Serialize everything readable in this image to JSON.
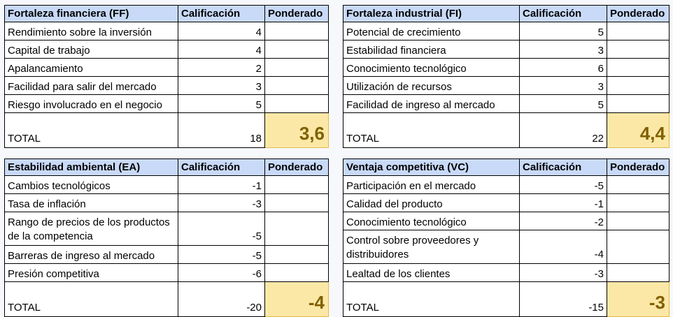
{
  "tables": {
    "ff": {
      "header": [
        "Fortaleza financiera (FF)",
        "Calificación",
        "Ponderado"
      ],
      "rows": [
        {
          "label": "Rendimiento sobre la inversión",
          "value": "4"
        },
        {
          "label": "Capital de trabajo",
          "value": "4"
        },
        {
          "label": "Apalancamiento",
          "value": "2"
        },
        {
          "label": "Facilidad para salir del mercado",
          "value": "3"
        },
        {
          "label": "Riesgo involucrado en el negocio",
          "value": "5"
        }
      ],
      "total_label": "TOTAL",
      "total_value": "18",
      "weighted": "3,6"
    },
    "fi": {
      "header": [
        "Fortaleza industrial (FI)",
        "Calificación",
        "Ponderado"
      ],
      "rows": [
        {
          "label": "Potencial de crecimiento",
          "value": "5"
        },
        {
          "label": "Estabilidad financiera",
          "value": "3"
        },
        {
          "label": "Conocimiento tecnológico",
          "value": "6"
        },
        {
          "label": "Utilización de recursos",
          "value": "3"
        },
        {
          "label": "Facilidad de ingreso al mercado",
          "value": "5"
        }
      ],
      "total_label": "TOTAL",
      "total_value": "22",
      "weighted": "4,4"
    },
    "ea": {
      "header": [
        "Estabilidad ambiental (EA)",
        "Calificación",
        "Ponderado"
      ],
      "rows": [
        {
          "label": "Cambios tecnológicos",
          "value": "-1"
        },
        {
          "label": "Tasa de inflación",
          "value": "-3"
        },
        {
          "label": "Rango de precios de los productos de la competencia",
          "value": "-5"
        },
        {
          "label": "Barreras de ingreso al mercado",
          "value": "-5"
        },
        {
          "label": "Presión competitiva",
          "value": "-6"
        }
      ],
      "total_label": "TOTAL",
      "total_value": "-20",
      "weighted": "-4"
    },
    "vc": {
      "header": [
        "Ventaja competitiva (VC)",
        "Calificación",
        "Ponderado"
      ],
      "rows": [
        {
          "label": "Participación en el mercado",
          "value": "-5"
        },
        {
          "label": "Calidad del producto",
          "value": "-1"
        },
        {
          "label": "Conocimiento tecnológico",
          "value": "-2"
        },
        {
          "label": "Control sobre proveedores y distribuidores",
          "value": "-4"
        },
        {
          "label": "Lealtad de los clientes",
          "value": "-3"
        }
      ],
      "total_label": "TOTAL",
      "total_value": "-15",
      "weighted": "-3"
    }
  }
}
